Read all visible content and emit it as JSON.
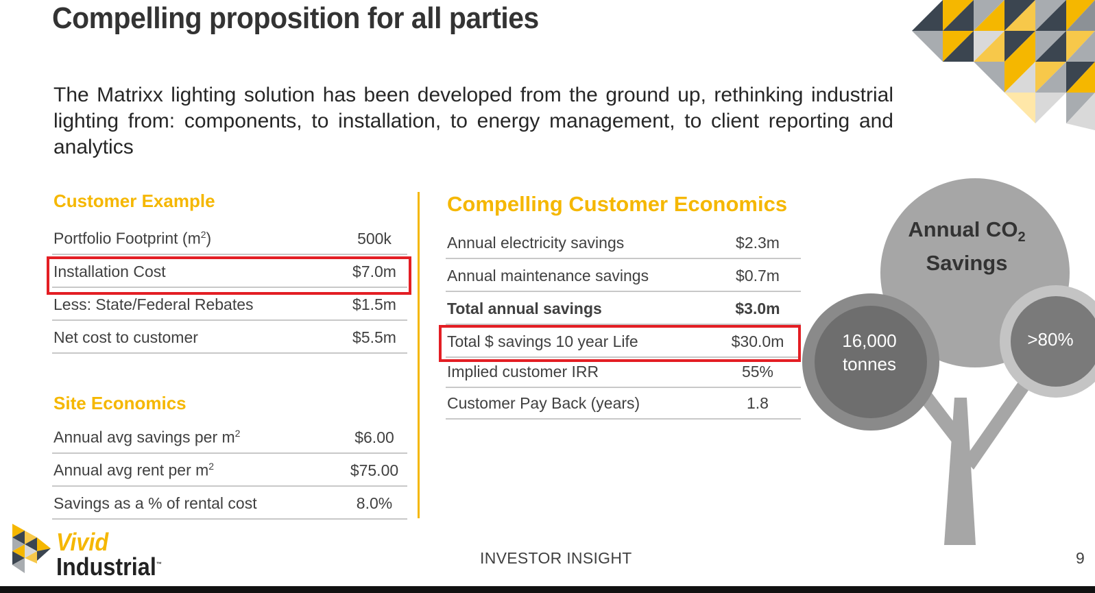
{
  "slide": {
    "title": "Compelling proposition for all parties",
    "intro": "The Matrixx lighting solution has been developed from the ground up, rethinking industrial lighting from: components, to installation, to energy management, to client reporting and analytics",
    "footer": "INVESTOR INSIGHT",
    "page_number": "9"
  },
  "customer_example": {
    "heading": "Customer Example",
    "rows": [
      {
        "label": "Portfolio Footprint (m",
        "sup": "2",
        "suffix": ")",
        "value": "500k"
      },
      {
        "label": "Installation Cost",
        "value": "$7.0m",
        "highlighted": true
      },
      {
        "label": "Less: State/Federal Rebates",
        "value": "$1.5m"
      },
      {
        "label": "Net cost to customer",
        "value": "$5.5m"
      }
    ]
  },
  "site_economics": {
    "heading": "Site Economics",
    "rows": [
      {
        "label": "Annual avg savings per m",
        "sup": "2",
        "value": "$6.00"
      },
      {
        "label": "Annual avg rent per m",
        "sup": "2",
        "value": "$75.00"
      },
      {
        "label": "Savings as a % of rental cost",
        "value": "8.0%"
      }
    ]
  },
  "customer_economics": {
    "heading": "Compelling Customer Economics",
    "rows": [
      {
        "label": "Annual electricity savings",
        "value": "$2.3m"
      },
      {
        "label": "Annual maintenance savings",
        "value": "$0.7m"
      },
      {
        "label": "Total annual savings",
        "value": "$3.0m",
        "bold": true
      },
      {
        "label": "Total $ savings 10 year Life",
        "value": "$30.0m",
        "highlighted": true
      },
      {
        "label": "Implied customer IRR",
        "value": "55%"
      },
      {
        "label": "Customer Pay Back (years)",
        "value": "1.8"
      }
    ]
  },
  "co2_tree": {
    "title_line1": "Annual CO",
    "title_sub": "2",
    "title_line2": "Savings",
    "left_value_line1": "16,000",
    "left_value_line2": "tonnes",
    "right_value": ">80%"
  },
  "logo": {
    "line1": "Vivid",
    "line2": "Industrial",
    "tm": "™"
  },
  "colors": {
    "accent": "#f5b700",
    "highlight_box": "#e31e24",
    "tree_dark": "#7a7a7a",
    "tree_light": "#a6a6a6"
  }
}
